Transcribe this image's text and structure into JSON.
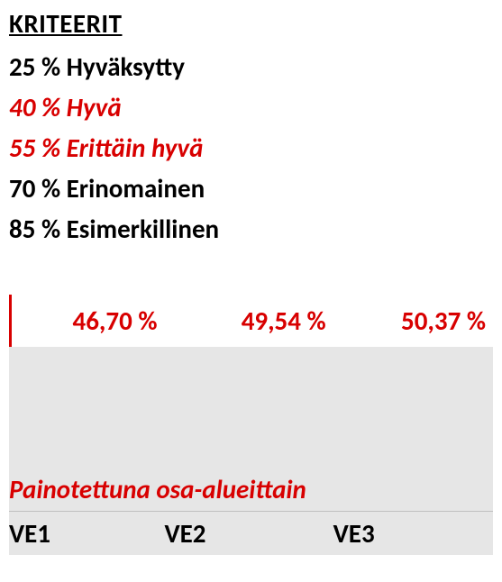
{
  "heading": "KRITEERIT",
  "criteria": [
    {
      "text": "25 % Hyväksytty",
      "highlight": false
    },
    {
      "text": "40 % Hyvä",
      "highlight": true
    },
    {
      "text": "55 % Erittäin hyvä",
      "highlight": true
    },
    {
      "text": "70 % Erinomainen",
      "highlight": false
    },
    {
      "text": "85 % Esimerkillinen",
      "highlight": false
    }
  ],
  "values": [
    "46,70 %",
    "49,54 %",
    "50,37 %"
  ],
  "subheading": "Painotettuna osa-alueittain",
  "labels": [
    "VE1",
    "VE2",
    "VE3"
  ],
  "colors": {
    "text": "#000000",
    "highlight": "#d80000",
    "grey_band": "#e6e6e6",
    "background": "#ffffff"
  },
  "typography": {
    "font_family": "Calibri, Arial, sans-serif",
    "base_size_pt": 22,
    "weight": "bold"
  }
}
